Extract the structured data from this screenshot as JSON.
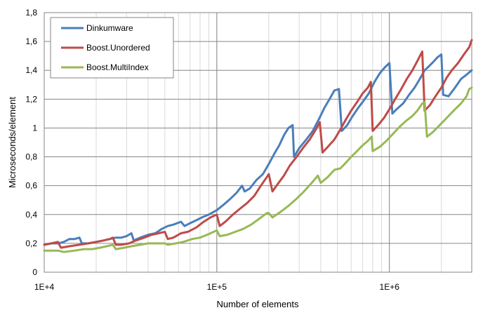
{
  "chart_data": {
    "type": "line",
    "title": "",
    "xlabel": "Number of elements",
    "ylabel": "Microseconds/element",
    "x_scale": "log",
    "xlim": [
      10000,
      3000000
    ],
    "ylim": [
      0,
      1.8
    ],
    "x_ticks": [
      10000,
      100000,
      1000000
    ],
    "x_tick_labels": [
      "1E+4",
      "1E+5",
      "1E+6"
    ],
    "y_ticks": [
      0,
      0.2,
      0.4,
      0.6,
      0.8,
      1.0,
      1.2,
      1.4,
      1.6,
      1.8
    ],
    "y_tick_labels": [
      "0",
      "0,2",
      "0,4",
      "0,6",
      "0,8",
      "1",
      "1,2",
      "1,4",
      "1,6",
      "1,8"
    ],
    "grid": {
      "major_x": true,
      "minor_x": true,
      "major_y": true
    },
    "legend": {
      "placement": "top-left"
    },
    "series": [
      {
        "name": "Dinkumware",
        "color": "#4a7ebb",
        "points": [
          [
            10000,
            0.19
          ],
          [
            11000,
            0.2
          ],
          [
            12000,
            0.2
          ],
          [
            13000,
            0.21
          ],
          [
            14000,
            0.23
          ],
          [
            15000,
            0.23
          ],
          [
            16000,
            0.24
          ],
          [
            16500,
            0.2
          ],
          [
            18000,
            0.2
          ],
          [
            20000,
            0.21
          ],
          [
            22000,
            0.22
          ],
          [
            24000,
            0.23
          ],
          [
            26000,
            0.24
          ],
          [
            28000,
            0.24
          ],
          [
            30000,
            0.25
          ],
          [
            32000,
            0.27
          ],
          [
            33000,
            0.22
          ],
          [
            36000,
            0.24
          ],
          [
            40000,
            0.26
          ],
          [
            44000,
            0.27
          ],
          [
            48000,
            0.3
          ],
          [
            52000,
            0.32
          ],
          [
            56000,
            0.33
          ],
          [
            62000,
            0.35
          ],
          [
            65000,
            0.32
          ],
          [
            70000,
            0.34
          ],
          [
            76000,
            0.36
          ],
          [
            82000,
            0.38
          ],
          [
            90000,
            0.4
          ],
          [
            100000,
            0.43
          ],
          [
            110000,
            0.47
          ],
          [
            120000,
            0.51
          ],
          [
            130000,
            0.55
          ],
          [
            140000,
            0.6
          ],
          [
            145000,
            0.56
          ],
          [
            155000,
            0.58
          ],
          [
            170000,
            0.64
          ],
          [
            185000,
            0.68
          ],
          [
            200000,
            0.75
          ],
          [
            215000,
            0.82
          ],
          [
            230000,
            0.88
          ],
          [
            245000,
            0.95
          ],
          [
            260000,
            1.0
          ],
          [
            275000,
            1.02
          ],
          [
            280000,
            0.8
          ],
          [
            300000,
            0.86
          ],
          [
            330000,
            0.92
          ],
          [
            360000,
            0.98
          ],
          [
            390000,
            1.06
          ],
          [
            420000,
            1.14
          ],
          [
            450000,
            1.2
          ],
          [
            480000,
            1.26
          ],
          [
            510000,
            1.27
          ],
          [
            530000,
            0.98
          ],
          [
            570000,
            1.02
          ],
          [
            610000,
            1.08
          ],
          [
            660000,
            1.14
          ],
          [
            710000,
            1.19
          ],
          [
            760000,
            1.24
          ],
          [
            820000,
            1.32
          ],
          [
            880000,
            1.38
          ],
          [
            940000,
            1.42
          ],
          [
            1000000,
            1.45
          ],
          [
            1040000,
            1.1
          ],
          [
            1100000,
            1.13
          ],
          [
            1200000,
            1.17
          ],
          [
            1300000,
            1.23
          ],
          [
            1400000,
            1.28
          ],
          [
            1500000,
            1.34
          ],
          [
            1600000,
            1.4
          ],
          [
            1700000,
            1.43
          ],
          [
            1800000,
            1.46
          ],
          [
            1900000,
            1.49
          ],
          [
            2000000,
            1.51
          ],
          [
            2050000,
            1.23
          ],
          [
            2200000,
            1.22
          ],
          [
            2400000,
            1.28
          ],
          [
            2600000,
            1.34
          ],
          [
            2800000,
            1.37
          ],
          [
            3000000,
            1.4
          ]
        ]
      },
      {
        "name": "Boost.Unordered",
        "color": "#be4b48",
        "points": [
          [
            10000,
            0.19
          ],
          [
            11000,
            0.2
          ],
          [
            12000,
            0.21
          ],
          [
            12500,
            0.17
          ],
          [
            14000,
            0.18
          ],
          [
            16000,
            0.19
          ],
          [
            18000,
            0.2
          ],
          [
            20000,
            0.21
          ],
          [
            22000,
            0.22
          ],
          [
            24000,
            0.23
          ],
          [
            25000,
            0.24
          ],
          [
            26000,
            0.19
          ],
          [
            28000,
            0.19
          ],
          [
            31000,
            0.2
          ],
          [
            34000,
            0.22
          ],
          [
            38000,
            0.24
          ],
          [
            42000,
            0.26
          ],
          [
            46000,
            0.27
          ],
          [
            50000,
            0.28
          ],
          [
            52000,
            0.23
          ],
          [
            56000,
            0.24
          ],
          [
            62000,
            0.27
          ],
          [
            68000,
            0.28
          ],
          [
            76000,
            0.31
          ],
          [
            84000,
            0.35
          ],
          [
            92000,
            0.38
          ],
          [
            100000,
            0.4
          ],
          [
            104000,
            0.32
          ],
          [
            112000,
            0.35
          ],
          [
            124000,
            0.4
          ],
          [
            136000,
            0.44
          ],
          [
            150000,
            0.48
          ],
          [
            165000,
            0.53
          ],
          [
            180000,
            0.6
          ],
          [
            195000,
            0.66
          ],
          [
            200000,
            0.68
          ],
          [
            210000,
            0.56
          ],
          [
            225000,
            0.61
          ],
          [
            245000,
            0.67
          ],
          [
            265000,
            0.74
          ],
          [
            290000,
            0.8
          ],
          [
            315000,
            0.86
          ],
          [
            345000,
            0.92
          ],
          [
            375000,
            0.99
          ],
          [
            395000,
            1.04
          ],
          [
            410000,
            0.83
          ],
          [
            440000,
            0.87
          ],
          [
            480000,
            0.92
          ],
          [
            520000,
            0.99
          ],
          [
            560000,
            1.06
          ],
          [
            600000,
            1.12
          ],
          [
            650000,
            1.18
          ],
          [
            700000,
            1.24
          ],
          [
            750000,
            1.28
          ],
          [
            780000,
            1.32
          ],
          [
            800000,
            0.98
          ],
          [
            860000,
            1.02
          ],
          [
            930000,
            1.07
          ],
          [
            1000000,
            1.13
          ],
          [
            1080000,
            1.2
          ],
          [
            1170000,
            1.27
          ],
          [
            1260000,
            1.34
          ],
          [
            1360000,
            1.4
          ],
          [
            1460000,
            1.47
          ],
          [
            1550000,
            1.53
          ],
          [
            1600000,
            1.12
          ],
          [
            1720000,
            1.16
          ],
          [
            1850000,
            1.22
          ],
          [
            2000000,
            1.28
          ],
          [
            2150000,
            1.35
          ],
          [
            2300000,
            1.4
          ],
          [
            2500000,
            1.45
          ],
          [
            2700000,
            1.51
          ],
          [
            2900000,
            1.56
          ],
          [
            3000000,
            1.61
          ]
        ]
      },
      {
        "name": "Boost.MultiIndex",
        "color": "#98b954",
        "points": [
          [
            10000,
            0.15
          ],
          [
            11000,
            0.15
          ],
          [
            12000,
            0.15
          ],
          [
            13000,
            0.14
          ],
          [
            15000,
            0.15
          ],
          [
            17000,
            0.16
          ],
          [
            19000,
            0.16
          ],
          [
            21000,
            0.17
          ],
          [
            23000,
            0.18
          ],
          [
            25000,
            0.19
          ],
          [
            26000,
            0.16
          ],
          [
            29000,
            0.17
          ],
          [
            32000,
            0.18
          ],
          [
            36000,
            0.19
          ],
          [
            40000,
            0.2
          ],
          [
            45000,
            0.2
          ],
          [
            50000,
            0.2
          ],
          [
            52000,
            0.19
          ],
          [
            58000,
            0.2
          ],
          [
            64000,
            0.21
          ],
          [
            72000,
            0.23
          ],
          [
            80000,
            0.24
          ],
          [
            88000,
            0.26
          ],
          [
            96000,
            0.28
          ],
          [
            100000,
            0.29
          ],
          [
            104000,
            0.25
          ],
          [
            115000,
            0.26
          ],
          [
            128000,
            0.28
          ],
          [
            142000,
            0.3
          ],
          [
            158000,
            0.33
          ],
          [
            176000,
            0.37
          ],
          [
            195000,
            0.41
          ],
          [
            200000,
            0.41
          ],
          [
            210000,
            0.38
          ],
          [
            235000,
            0.42
          ],
          [
            260000,
            0.46
          ],
          [
            290000,
            0.51
          ],
          [
            320000,
            0.56
          ],
          [
            355000,
            0.62
          ],
          [
            385000,
            0.67
          ],
          [
            400000,
            0.62
          ],
          [
            440000,
            0.66
          ],
          [
            480000,
            0.71
          ],
          [
            520000,
            0.72
          ],
          [
            560000,
            0.76
          ],
          [
            600000,
            0.8
          ],
          [
            650000,
            0.84
          ],
          [
            700000,
            0.88
          ],
          [
            750000,
            0.91
          ],
          [
            790000,
            0.94
          ],
          [
            800000,
            0.84
          ],
          [
            880000,
            0.87
          ],
          [
            960000,
            0.91
          ],
          [
            1050000,
            0.96
          ],
          [
            1150000,
            1.01
          ],
          [
            1250000,
            1.05
          ],
          [
            1350000,
            1.08
          ],
          [
            1450000,
            1.12
          ],
          [
            1550000,
            1.17
          ],
          [
            1600000,
            1.18
          ],
          [
            1650000,
            0.94
          ],
          [
            1780000,
            0.97
          ],
          [
            1920000,
            1.01
          ],
          [
            2070000,
            1.05
          ],
          [
            2230000,
            1.09
          ],
          [
            2400000,
            1.13
          ],
          [
            2600000,
            1.17
          ],
          [
            2800000,
            1.22
          ],
          [
            2900000,
            1.27
          ],
          [
            3000000,
            1.28
          ]
        ]
      }
    ]
  }
}
